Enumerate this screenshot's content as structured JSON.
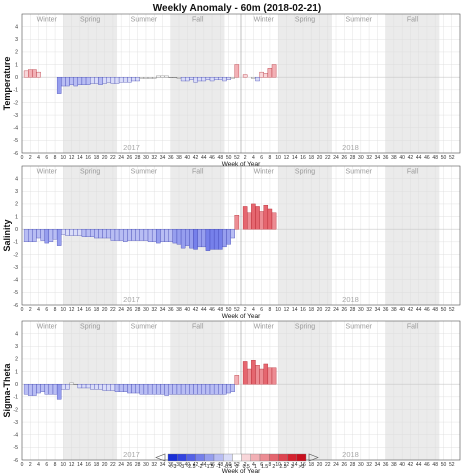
{
  "title": "Weekly Anomaly - 60m (2018-02-21)",
  "chart_data": [
    {
      "type": "bar",
      "ylabel": "Temperature",
      "xlabel": "Week of Year",
      "ylim": [
        -6,
        5
      ],
      "yticks": [
        -6,
        -5,
        -4,
        -3,
        -2,
        -1,
        0,
        1,
        2,
        3,
        4
      ],
      "series": [
        {
          "year": "2017",
          "weeks": [
            1,
            2,
            3,
            4,
            5,
            6,
            7,
            8,
            9,
            10,
            11,
            12,
            13,
            14,
            15,
            16,
            17,
            18,
            19,
            20,
            21,
            22,
            23,
            24,
            25,
            26,
            27,
            28,
            29,
            30,
            31,
            32,
            33,
            34,
            35,
            36,
            37,
            38,
            39,
            40,
            41,
            42,
            43,
            44,
            45,
            46,
            47,
            48,
            49,
            50,
            51,
            52
          ],
          "values": [
            0.5,
            0.6,
            0.6,
            0.4,
            null,
            null,
            null,
            null,
            -1.3,
            -0.7,
            -0.7,
            -0.6,
            -0.7,
            -0.6,
            -0.6,
            -0.6,
            -0.5,
            -0.5,
            -0.6,
            -0.5,
            -0.4,
            -0.5,
            -0.5,
            -0.4,
            -0.4,
            -0.4,
            -0.3,
            -0.3,
            -0.1,
            -0.1,
            -0.1,
            -0.1,
            0.1,
            0.1,
            0.1,
            0.0,
            0.0,
            -0.1,
            -0.3,
            -0.3,
            -0.2,
            -0.4,
            -0.3,
            -0.3,
            -0.2,
            -0.3,
            -0.2,
            -0.2,
            -0.3,
            -0.2,
            -0.1,
            1.0
          ]
        },
        {
          "year": "2018",
          "weeks": [
            1,
            2,
            3,
            4,
            5,
            6,
            7,
            8
          ],
          "values": [
            0.2,
            null,
            -0.1,
            -0.3,
            0.4,
            0.3,
            0.7,
            1.0
          ]
        }
      ]
    },
    {
      "type": "bar",
      "ylabel": "Salinity",
      "xlabel": "Week of Year",
      "ylim": [
        -6,
        5
      ],
      "yticks": [
        -6,
        -5,
        -4,
        -3,
        -2,
        -1,
        0,
        1,
        2,
        3,
        4
      ],
      "series": [
        {
          "year": "2017",
          "weeks": [
            1,
            2,
            3,
            4,
            5,
            6,
            7,
            8,
            9,
            10,
            11,
            12,
            13,
            14,
            15,
            16,
            17,
            18,
            19,
            20,
            21,
            22,
            23,
            24,
            25,
            26,
            27,
            28,
            29,
            30,
            31,
            32,
            33,
            34,
            35,
            36,
            37,
            38,
            39,
            40,
            41,
            42,
            43,
            44,
            45,
            46,
            47,
            48,
            49,
            50,
            51,
            52
          ],
          "values": [
            -1.0,
            -1.0,
            -1.0,
            -0.7,
            -0.9,
            -1.1,
            -1.0,
            -0.8,
            -1.3,
            -0.4,
            -0.5,
            -0.5,
            -0.5,
            -0.5,
            -0.6,
            -0.6,
            -0.6,
            -0.7,
            -0.7,
            -0.7,
            -0.7,
            -0.9,
            -0.9,
            -0.9,
            -1.0,
            -0.9,
            -0.9,
            -0.9,
            -0.9,
            -0.9,
            -1.0,
            -1.0,
            -1.1,
            -1.0,
            -1.0,
            -1.0,
            -1.1,
            -1.2,
            -1.5,
            -1.3,
            -1.5,
            -1.6,
            -1.4,
            -1.4,
            -1.7,
            -1.6,
            -1.6,
            -1.6,
            -1.4,
            -1.2,
            -0.7,
            1.1
          ]
        },
        {
          "year": "2018",
          "weeks": [
            1,
            2,
            3,
            4,
            5,
            6,
            7,
            8
          ],
          "values": [
            1.8,
            1.3,
            2.0,
            1.8,
            1.4,
            1.9,
            1.6,
            1.3
          ]
        }
      ]
    },
    {
      "type": "bar",
      "ylabel": "Sigma-Theta",
      "xlabel": "Week of Year",
      "ylim": [
        -6,
        5
      ],
      "yticks": [
        -6,
        -5,
        -4,
        -3,
        -2,
        -1,
        0,
        1,
        2,
        3,
        4
      ],
      "series": [
        {
          "year": "2017",
          "weeks": [
            1,
            2,
            3,
            4,
            5,
            6,
            7,
            8,
            9,
            10,
            11,
            12,
            13,
            14,
            15,
            16,
            17,
            18,
            19,
            20,
            21,
            22,
            23,
            24,
            25,
            26,
            27,
            28,
            29,
            30,
            31,
            32,
            33,
            34,
            35,
            36,
            37,
            38,
            39,
            40,
            41,
            42,
            43,
            44,
            45,
            46,
            47,
            48,
            49,
            50,
            51,
            52
          ],
          "values": [
            -0.8,
            -0.9,
            -0.9,
            -0.7,
            -0.6,
            -0.8,
            -0.8,
            -0.8,
            -1.2,
            -0.4,
            -0.4,
            0.1,
            0.0,
            -0.3,
            -0.3,
            -0.3,
            -0.4,
            -0.4,
            -0.4,
            -0.5,
            -0.5,
            -0.5,
            -0.6,
            -0.6,
            -0.6,
            -0.7,
            -0.7,
            -0.7,
            -0.8,
            -0.8,
            -0.8,
            -0.8,
            -0.8,
            -0.8,
            -0.9,
            -0.8,
            -0.8,
            -0.8,
            -0.8,
            -0.8,
            -0.8,
            -0.8,
            -0.8,
            -0.8,
            -0.8,
            -0.8,
            -0.8,
            -0.8,
            -0.8,
            -0.7,
            -0.6,
            0.7
          ]
        },
        {
          "year": "2018",
          "weeks": [
            1,
            2,
            3,
            4,
            5,
            6,
            7,
            8
          ],
          "values": [
            1.8,
            1.2,
            1.9,
            1.5,
            1.2,
            1.6,
            1.3,
            1.3
          ]
        }
      ]
    }
  ],
  "seasons": [
    "Winter",
    "Spring",
    "Summer",
    "Fall",
    "Winter",
    "Spring",
    "Summer",
    "Fall"
  ],
  "years": [
    "2017",
    "2018"
  ],
  "x_tick_labels": [
    "0",
    "2",
    "4",
    "6",
    "8",
    "10",
    "12",
    "14",
    "16",
    "18",
    "20",
    "22",
    "24",
    "26",
    "28",
    "30",
    "32",
    "34",
    "36",
    "38",
    "40",
    "42",
    "44",
    "46",
    "48",
    "50",
    "52",
    "2",
    "4",
    "6",
    "8",
    "10",
    "12",
    "14",
    "16",
    "18",
    "20",
    "22",
    "24",
    "26",
    "28",
    "30",
    "32",
    "34",
    "36",
    "38",
    "40",
    "42",
    "44",
    "46",
    "48",
    "50",
    "52"
  ],
  "colorbar": {
    "ticks": [
      "<-3",
      "-3",
      "-2.5",
      "-2",
      "-1.5",
      "-1",
      "-0.5",
      "0",
      "0.5",
      "1",
      "1.5",
      "2",
      "2.5",
      "3",
      ">3"
    ],
    "colors": [
      "#1a2fd6",
      "#3344e0",
      "#5562e6",
      "#7680ea",
      "#969eee",
      "#b8bdf3",
      "#d9dcf8",
      "#ffffff",
      "#f8d6d9",
      "#f2b0b5",
      "#ec8c93",
      "#e5666f",
      "#de4450",
      "#d5222f",
      "#c8101f"
    ]
  }
}
